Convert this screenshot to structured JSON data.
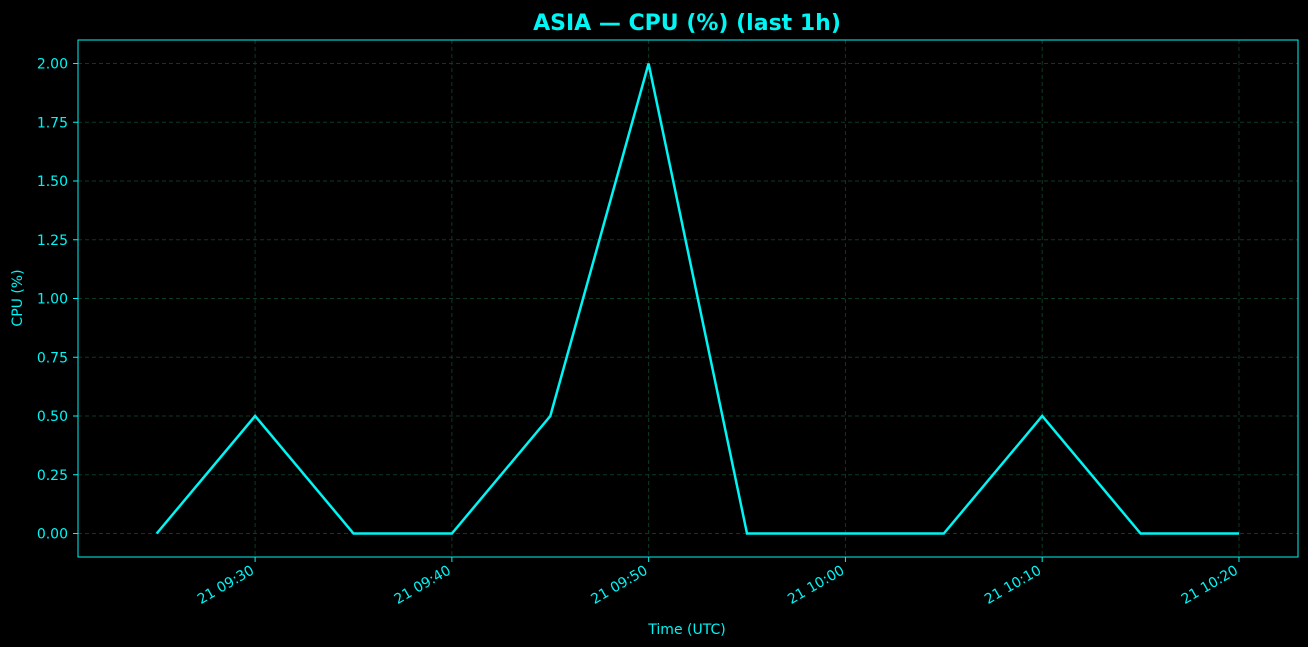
{
  "colors": {
    "background": "#000000",
    "accent": "#00f5f5",
    "grid": "#0c3a22"
  },
  "chart_data": {
    "type": "line",
    "title": "ASIA — CPU (%) (last 1h)",
    "xlabel": "Time (UTC)",
    "ylabel": "CPU (%)",
    "x": [
      "09:25",
      "09:30",
      "09:35",
      "09:40",
      "09:45",
      "09:50",
      "09:55",
      "10:00",
      "10:05",
      "10:10",
      "10:15",
      "10:20"
    ],
    "series": [
      {
        "values": [
          0,
          0.5,
          0,
          0,
          0.5,
          2.0,
          0,
          0,
          0,
          0.5,
          0,
          0
        ]
      }
    ],
    "xlim": [
      "09:21",
      "10:23"
    ],
    "ylim": [
      -0.1,
      2.1
    ],
    "x_ticks": [
      {
        "at": "09:30",
        "label": "21 09:30"
      },
      {
        "at": "09:40",
        "label": "21 09:40"
      },
      {
        "at": "09:50",
        "label": "21 09:50"
      },
      {
        "at": "10:00",
        "label": "21 10:00"
      },
      {
        "at": "10:10",
        "label": "21 10:10"
      },
      {
        "at": "10:20",
        "label": "21 10:20"
      }
    ],
    "y_ticks": [
      "0.00",
      "0.25",
      "0.50",
      "0.75",
      "1.00",
      "1.25",
      "1.50",
      "1.75",
      "2.00"
    ],
    "grid": true
  }
}
